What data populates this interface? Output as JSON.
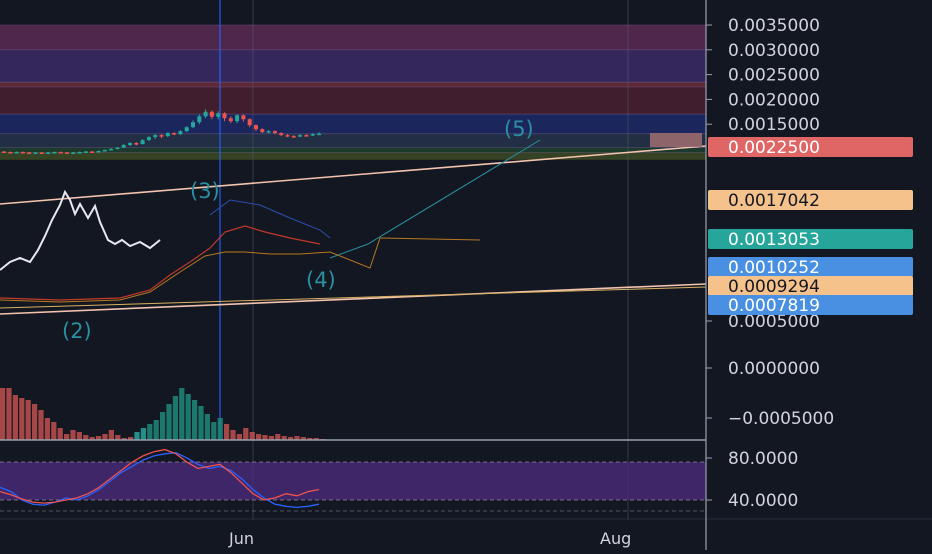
{
  "chart_data": [
    {
      "type": "candlestick",
      "title": "",
      "x_ticks": [
        "Jun",
        "Aug"
      ],
      "y_ticks": [
        0.0035,
        0.003,
        0.0025,
        0.002,
        0.0015
      ],
      "y_tick_labels": [
        "0.0035000",
        "0.0030000",
        "0.0025000",
        "0.0020000",
        "0.0015000"
      ],
      "ylim": [
        0.00055,
        0.0037
      ],
      "price_labels": [
        {
          "value": 0.00225,
          "text": "0.0022500",
          "color": "#e06666"
        },
        {
          "value": 0.0017042,
          "text": "0.0017042",
          "color": "#f6c28b"
        },
        {
          "value": 0.0013053,
          "text": "0.0013053",
          "color": "#26a69a"
        },
        {
          "value": 0.0010252,
          "text": "0.0010252",
          "color": "#4a90e2"
        },
        {
          "value": 0.0009294,
          "text": "0.0009294",
          "color": "#f6c28b"
        },
        {
          "value": 0.0007819,
          "text": "0.0007819",
          "color": "#4a90e2"
        }
      ],
      "zones": [
        {
          "from": 0.003,
          "to": 0.0035,
          "color": "#5a2a55"
        },
        {
          "from": 0.00235,
          "to": 0.003,
          "color": "#3b2a66"
        },
        {
          "from": 0.00225,
          "to": 0.00235,
          "color": "#6a2d3a"
        },
        {
          "from": 0.0017042,
          "to": 0.00225,
          "color": "#4a2030"
        },
        {
          "from": 0.0013053,
          "to": 0.0017042,
          "color": "#1d2a66"
        },
        {
          "from": 0.0010252,
          "to": 0.0013053,
          "color": "#24324a"
        },
        {
          "from": 0.0009294,
          "to": 0.0010252,
          "color": "#1f4030"
        },
        {
          "from": 0.0007819,
          "to": 0.0009294,
          "color": "#3d4a25"
        }
      ],
      "wave_labels": [
        "(2)",
        "(3)",
        "(4)",
        "(5)"
      ],
      "candles": [
        [
          0.00095,
          0.00094,
          0.00096,
          0.00093
        ],
        [
          0.00094,
          0.00093,
          0.00095,
          0.00092
        ],
        [
          0.00093,
          0.00094,
          0.00095,
          0.00092
        ],
        [
          0.00094,
          0.00093,
          0.00095,
          0.00092
        ],
        [
          0.00093,
          0.00092,
          0.00094,
          0.00091
        ],
        [
          0.00092,
          0.00093,
          0.00094,
          0.00091
        ],
        [
          0.00093,
          0.00092,
          0.00094,
          0.00091
        ],
        [
          0.00092,
          0.00093,
          0.00094,
          0.00091
        ],
        [
          0.00093,
          0.00094,
          0.00095,
          0.00092
        ],
        [
          0.00094,
          0.00093,
          0.00095,
          0.00092
        ],
        [
          0.00093,
          0.00092,
          0.00094,
          0.00091
        ],
        [
          0.00092,
          0.00093,
          0.00094,
          0.00091
        ],
        [
          0.00093,
          0.00094,
          0.00095,
          0.00092
        ],
        [
          0.00094,
          0.00095,
          0.00096,
          0.00093
        ],
        [
          0.00095,
          0.00094,
          0.00096,
          0.00093
        ],
        [
          0.00094,
          0.00096,
          0.00097,
          0.00093
        ],
        [
          0.00096,
          0.00098,
          0.00099,
          0.00095
        ],
        [
          0.00098,
          0.001,
          0.00102,
          0.00097
        ],
        [
          0.001,
          0.00103,
          0.00104,
          0.00099
        ],
        [
          0.00103,
          0.00108,
          0.0011,
          0.00102
        ],
        [
          0.00108,
          0.00112,
          0.00114,
          0.00106
        ],
        [
          0.00112,
          0.0011,
          0.00114,
          0.00107
        ],
        [
          0.0011,
          0.00118,
          0.0012,
          0.00109
        ],
        [
          0.00118,
          0.00124,
          0.00126,
          0.00116
        ],
        [
          0.00124,
          0.00128,
          0.0013,
          0.0012
        ],
        [
          0.00128,
          0.00126,
          0.0013,
          0.00122
        ],
        [
          0.00126,
          0.00132,
          0.00134,
          0.00124
        ],
        [
          0.00132,
          0.0013,
          0.00134,
          0.00128
        ],
        [
          0.0013,
          0.00136,
          0.00138,
          0.00128
        ],
        [
          0.00136,
          0.00144,
          0.00146,
          0.00134
        ],
        [
          0.00144,
          0.00154,
          0.00158,
          0.00142
        ],
        [
          0.00154,
          0.00166,
          0.0017,
          0.0015
        ],
        [
          0.00166,
          0.00175,
          0.0018,
          0.00162
        ],
        [
          0.00175,
          0.00165,
          0.00178,
          0.0016
        ],
        [
          0.00165,
          0.00172,
          0.00176,
          0.0016
        ],
        [
          0.00172,
          0.00162,
          0.00174,
          0.00156
        ],
        [
          0.00162,
          0.00156,
          0.00166,
          0.00152
        ],
        [
          0.00156,
          0.00168,
          0.0017,
          0.00152
        ],
        [
          0.00168,
          0.0016,
          0.0017,
          0.00155
        ],
        [
          0.0016,
          0.00148,
          0.00162,
          0.00144
        ],
        [
          0.00148,
          0.0014,
          0.0015,
          0.00136
        ],
        [
          0.0014,
          0.00134,
          0.00142,
          0.00132
        ],
        [
          0.00134,
          0.00136,
          0.00138,
          0.00132
        ],
        [
          0.00136,
          0.00132,
          0.00138,
          0.0013
        ],
        [
          0.00132,
          0.00128,
          0.00134,
          0.00126
        ],
        [
          0.00128,
          0.00126,
          0.0013,
          0.00124
        ],
        [
          0.00126,
          0.00125,
          0.00128,
          0.00123
        ],
        [
          0.00125,
          0.00128,
          0.0013,
          0.00124
        ],
        [
          0.00128,
          0.00127,
          0.0013,
          0.00125
        ],
        [
          0.00127,
          0.0013,
          0.00132,
          0.00126
        ],
        [
          0.0013,
          0.00131,
          0.00134,
          0.00128
        ]
      ]
    },
    {
      "type": "bar",
      "title": "",
      "y_ticks": [
        0.0005,
        0.0,
        -0.0005
      ],
      "y_tick_labels": [
        "0.0005000",
        "0.0000000",
        "−0.0005000"
      ],
      "values": [
        0.00052,
        0.00052,
        0.00045,
        0.00042,
        0.0004,
        0.00036,
        0.0003,
        0.00022,
        0.00018,
        0.00012,
        6e-05,
        0.0001,
        8e-05,
        5e-05,
        3e-05,
        4e-05,
        6e-05,
        0.0001,
        5e-05,
        2e-05,
        3e-05,
        8e-05,
        0.00012,
        0.00016,
        0.0002,
        0.00028,
        0.00036,
        0.00044,
        0.00052,
        0.00046,
        0.0004,
        0.00034,
        0.00026,
        0.00018,
        0.00022,
        0.00016,
        0.0001,
        6e-05,
        0.00012,
        8e-05,
        6e-05,
        5e-05,
        4e-05,
        6e-05,
        4e-05,
        3e-05,
        4e-05,
        3e-05,
        2e-05,
        2e-05,
        1e-05
      ]
    },
    {
      "type": "line",
      "title": "",
      "y_ticks": [
        80,
        40
      ],
      "y_tick_labels": [
        "80.0000",
        "40.0000"
      ],
      "ylim": [
        30,
        90
      ],
      "series": [
        {
          "values": [
            52,
            48,
            40,
            36,
            35,
            38,
            42,
            40,
            44,
            50,
            58,
            66,
            72,
            78,
            82,
            84,
            85,
            80,
            74,
            70,
            72,
            68,
            60,
            50,
            42,
            36,
            34,
            33,
            34,
            36
          ]
        },
        {
          "values": [
            48,
            45,
            41,
            38,
            37,
            38,
            40,
            42,
            46,
            52,
            60,
            68,
            76,
            82,
            86,
            88,
            84,
            76,
            70,
            72,
            74,
            66,
            56,
            46,
            40,
            42,
            46,
            44,
            48,
            50
          ]
        }
      ]
    }
  ]
}
